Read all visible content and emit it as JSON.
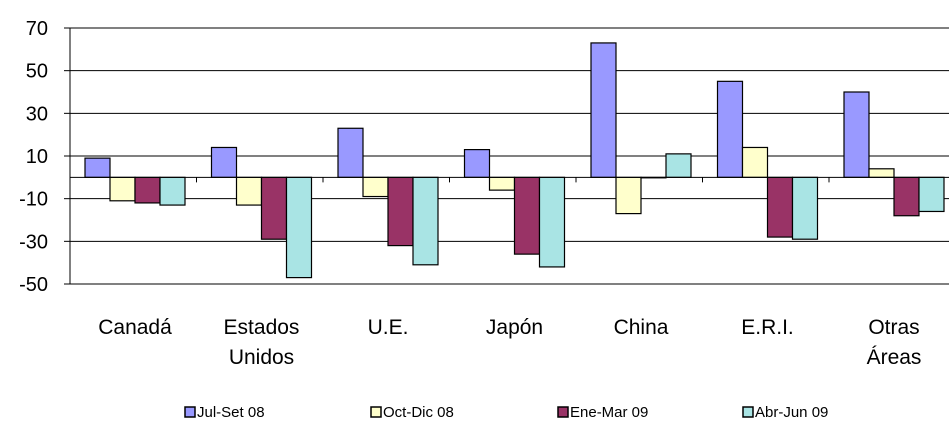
{
  "chart_data": {
    "type": "bar",
    "title": "",
    "xlabel": "",
    "ylabel": "",
    "ylim": [
      -50,
      70
    ],
    "yticks": [
      "70",
      "50",
      "30",
      "10",
      "-10",
      "-30",
      "-50"
    ],
    "grid": true,
    "legend_position": "bottom",
    "categories": [
      [
        "Canadá"
      ],
      [
        "Estados",
        "Unidos"
      ],
      [
        "U.E."
      ],
      [
        "Japón"
      ],
      [
        "China"
      ],
      [
        "E.R.I."
      ],
      [
        "Otras",
        "Áreas"
      ]
    ],
    "series": [
      {
        "name": "Jul-Set 08",
        "color": "#9999ff",
        "values": [
          9,
          14,
          23,
          13,
          63,
          45,
          40
        ]
      },
      {
        "name": "Oct-Dic 08",
        "color": "#ffffcc",
        "values": [
          -11,
          -13,
          -9,
          -6,
          -17,
          14,
          4
        ]
      },
      {
        "name": "Ene-Mar 09",
        "color": "#993366",
        "values": [
          -12,
          -29,
          -32,
          -36,
          0,
          -28,
          -18
        ]
      },
      {
        "name": "Abr-Jun 09",
        "color": "#a9e4e4",
        "values": [
          -13,
          -47,
          -41,
          -42,
          11,
          -29,
          -16
        ]
      }
    ]
  }
}
